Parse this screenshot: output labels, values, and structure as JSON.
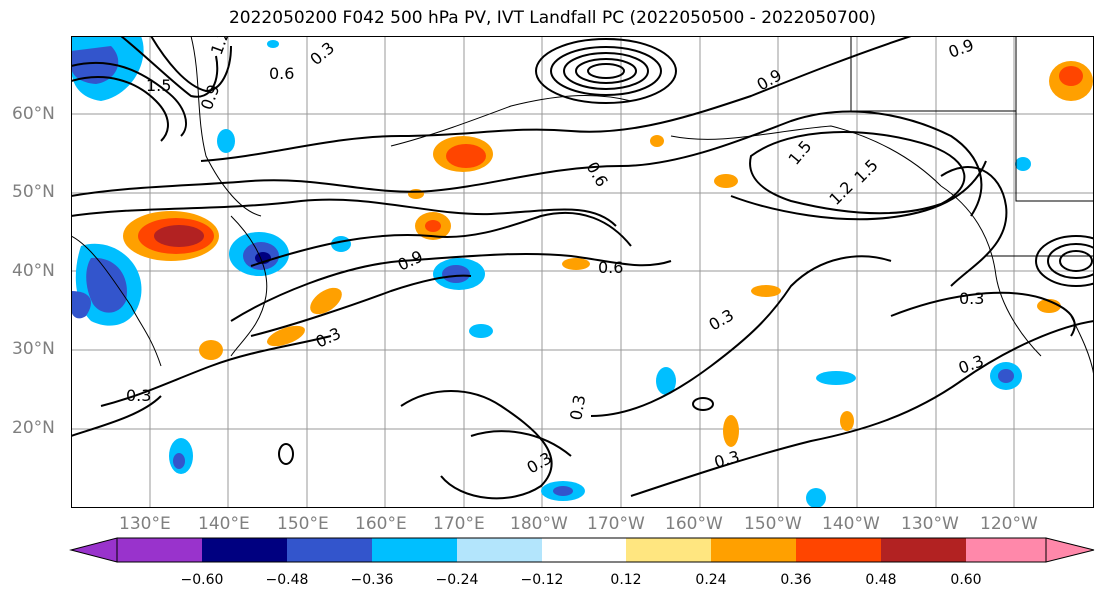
{
  "title": "2022050200 F042 500 hPa PV, IVT Landfall PC (2022050500 - 2022050700)",
  "map": {
    "lat_labels": [
      "60°N",
      "50°N",
      "40°N",
      "30°N",
      "20°N"
    ],
    "lon_labels": [
      "130°E",
      "140°E",
      "150°E",
      "160°E",
      "170°E",
      "180°W",
      "170°W",
      "160°W",
      "150°W",
      "140°W",
      "130°W",
      "120°W"
    ],
    "contour_labels": [
      "0.6",
      "0.9",
      "1.2",
      "1.5",
      "0.3",
      "0.6",
      "0.9",
      "0.3",
      "0.3",
      "0.3",
      "0.3",
      "0.3",
      "0.3",
      "0.3",
      "0.3",
      "1.5",
      "1.2",
      "1.5",
      "0.9",
      "0.6",
      "0.9"
    ]
  },
  "colorbar": {
    "ticks": [
      "−0.60",
      "−0.48",
      "−0.36",
      "−0.24",
      "−0.12",
      "0.12",
      "0.24",
      "0.36",
      "0.48",
      "0.60"
    ],
    "colors": [
      "#9933cc",
      "#000080",
      "#3355cc",
      "#00bfff",
      "#b3e5fc",
      "#ffffff",
      "#ffe680",
      "#ffa000",
      "#ff4500",
      "#b22222",
      "#ff88aa"
    ]
  }
}
